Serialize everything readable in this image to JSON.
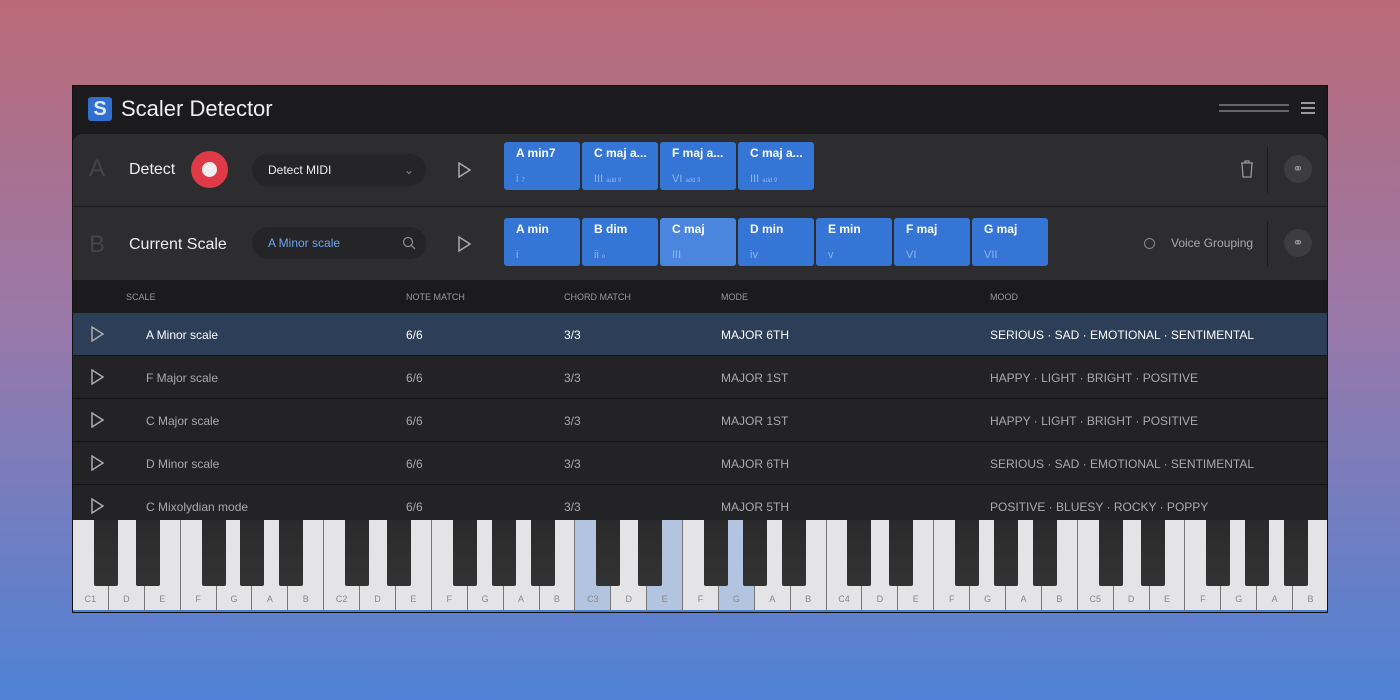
{
  "app": {
    "title": "Scaler Detector",
    "logo": "S"
  },
  "rowA": {
    "letter": "A",
    "label": "Detect",
    "source": "Detect MIDI",
    "chords": [
      {
        "name": "A min7",
        "roman": "i",
        "sup": "7"
      },
      {
        "name": "C maj a...",
        "roman": "III",
        "sup": "add 9"
      },
      {
        "name": "F maj a...",
        "roman": "VI",
        "sup": "add 9"
      },
      {
        "name": "C maj a...",
        "roman": "III",
        "sup": "add 9"
      }
    ]
  },
  "rowB": {
    "letter": "B",
    "label": "Current Scale",
    "search_value": "A Minor scale",
    "voice_grouping": "Voice Grouping",
    "chords": [
      {
        "name": "A min",
        "roman": "i",
        "sup": ""
      },
      {
        "name": "B dim",
        "roman": "ii",
        "sup": "o"
      },
      {
        "name": "C maj",
        "roman": "III",
        "sup": ""
      },
      {
        "name": "D min",
        "roman": "iv",
        "sup": ""
      },
      {
        "name": "E min",
        "roman": "v",
        "sup": ""
      },
      {
        "name": "F maj",
        "roman": "VI",
        "sup": ""
      },
      {
        "name": "G maj",
        "roman": "VII",
        "sup": ""
      }
    ],
    "selected_chord": 2
  },
  "table": {
    "headers": [
      "SCALE",
      "NOTE MATCH",
      "CHORD MATCH",
      "MODE",
      "MOOD"
    ],
    "rows": [
      {
        "scale": "A Minor scale",
        "note": "6/6",
        "chord": "3/3",
        "mode": "MAJOR  6TH",
        "mood": "SERIOUS  ·  SAD  ·  EMOTIONAL  ·  SENTIMENTAL"
      },
      {
        "scale": "F Major scale",
        "note": "6/6",
        "chord": "3/3",
        "mode": "MAJOR  1ST",
        "mood": "HAPPY  ·  LIGHT  ·  BRIGHT  ·  POSITIVE"
      },
      {
        "scale": "C Major scale",
        "note": "6/6",
        "chord": "3/3",
        "mode": "MAJOR  1ST",
        "mood": "HAPPY  ·  LIGHT  ·  BRIGHT  ·  POSITIVE"
      },
      {
        "scale": "D Minor scale",
        "note": "6/6",
        "chord": "3/3",
        "mode": "MAJOR  6TH",
        "mood": "SERIOUS  ·  SAD  ·  EMOTIONAL  ·  SENTIMENTAL"
      },
      {
        "scale": "C Mixolydian mode",
        "note": "6/6",
        "chord": "3/3",
        "mode": "MAJOR  5TH",
        "mood": "POSITIVE  ·  BLUESY  ·  ROCKY  ·  POPPY"
      }
    ],
    "selected_row": 0
  },
  "piano": {
    "white_keys": [
      "C1",
      "D",
      "E",
      "F",
      "G",
      "A",
      "B",
      "C2",
      "D",
      "E",
      "F",
      "G",
      "A",
      "B",
      "C3",
      "D",
      "E",
      "F",
      "G",
      "A",
      "B",
      "C4",
      "D",
      "E",
      "F",
      "G",
      "A",
      "B",
      "C5",
      "D",
      "E",
      "F",
      "G",
      "A",
      "B"
    ],
    "highlighted": [
      "C3",
      "E3",
      "G3"
    ]
  },
  "colors": {
    "accent": "#3475d6",
    "record": "#e03a48",
    "selected_row": "#2c3e58"
  }
}
